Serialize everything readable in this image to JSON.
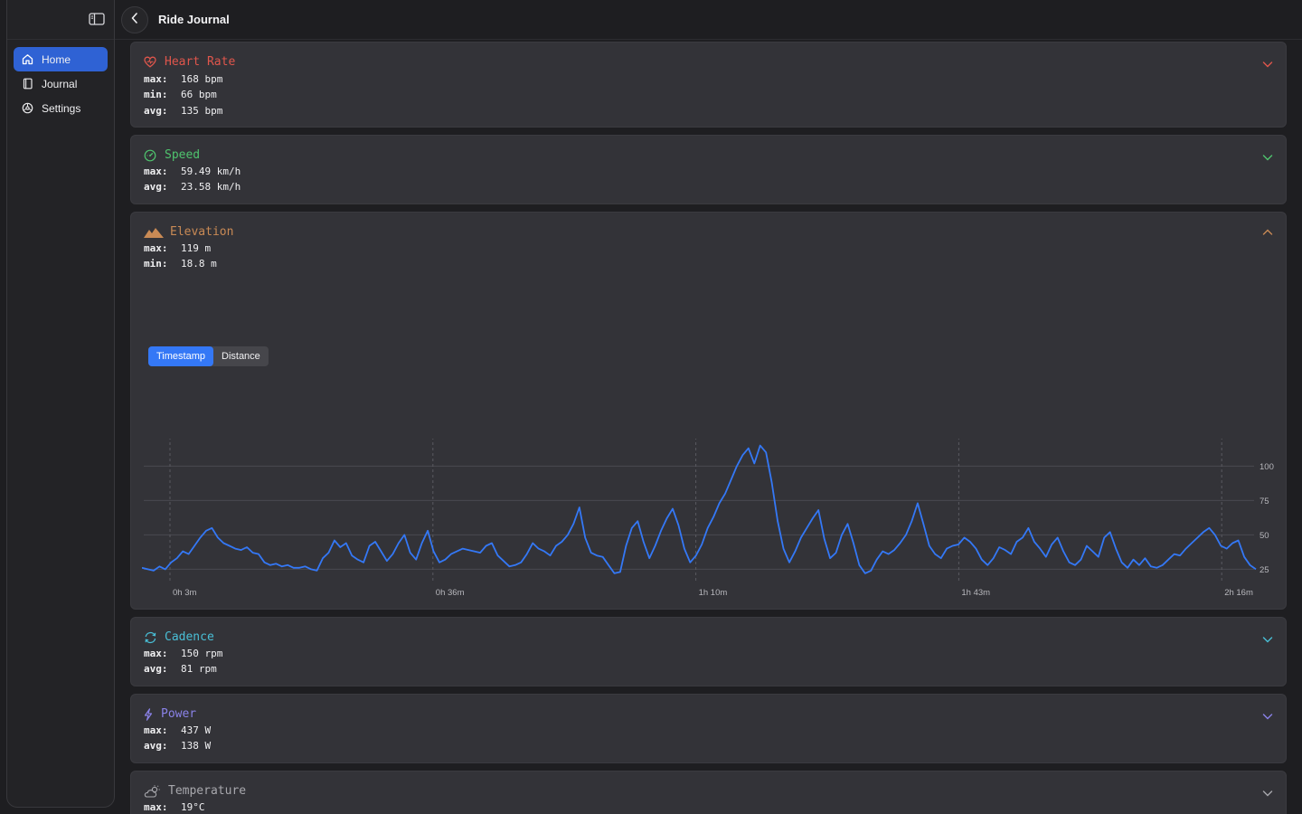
{
  "app": {
    "title": "Ride Journal"
  },
  "sidebar": {
    "items": [
      {
        "label": "Home",
        "icon": "home-icon",
        "active": true
      },
      {
        "label": "Journal",
        "icon": "book-icon",
        "active": false
      },
      {
        "label": "Settings",
        "icon": "gear-icon",
        "active": false
      }
    ]
  },
  "colors": {
    "heart": "#e0564c",
    "speed": "#4fc46e",
    "elevation": "#c98a55",
    "cadence": "#49bfd6",
    "power": "#8a82e8",
    "temperature": "#a8a8ad",
    "accent": "#3478f6"
  },
  "metrics": {
    "heart": {
      "title": "Heart Rate",
      "icon": "heart-icon",
      "rows": [
        {
          "k": "max:",
          "v": "168 bpm"
        },
        {
          "k": "min:",
          "v": "66 bpm"
        },
        {
          "k": "avg:",
          "v": "135 bpm"
        }
      ]
    },
    "speed": {
      "title": "Speed",
      "icon": "speedometer-icon",
      "rows": [
        {
          "k": "max:",
          "v": "59.49 km/h"
        },
        {
          "k": "avg:",
          "v": "23.58 km/h"
        }
      ]
    },
    "elevation": {
      "title": "Elevation",
      "icon": "mountain-icon",
      "rows": [
        {
          "k": "max:",
          "v": "119 m"
        },
        {
          "k": "min:",
          "v": "18.8 m"
        }
      ]
    },
    "cadence": {
      "title": "Cadence",
      "icon": "cycle-arrows-icon",
      "rows": [
        {
          "k": "max:",
          "v": "150 rpm"
        },
        {
          "k": "avg:",
          "v": "81 rpm"
        }
      ]
    },
    "power": {
      "title": "Power",
      "icon": "bolt-icon",
      "rows": [
        {
          "k": "max:",
          "v": "437 W"
        },
        {
          "k": "avg:",
          "v": "138 W"
        }
      ]
    },
    "temperature": {
      "title": "Temperature",
      "icon": "cloud-sun-icon",
      "rows": [
        {
          "k": "max:",
          "v": "19°C"
        }
      ]
    }
  },
  "elevation_toggle": {
    "options": [
      "Timestamp",
      "Distance"
    ],
    "selected": "Timestamp"
  },
  "chart_data": {
    "type": "line",
    "title": "",
    "xlabel": "",
    "ylabel": "",
    "x_tick_labels": [
      "0h 3m",
      "0h 36m",
      "1h 10m",
      "1h 43m",
      "2h 16m"
    ],
    "y_ticks": [
      25,
      50,
      75,
      100
    ],
    "ylim": [
      18,
      120
    ],
    "grid": true,
    "series": [
      {
        "values": [
          26,
          25,
          24,
          27,
          25,
          30,
          33,
          38,
          36,
          42,
          48,
          53,
          55,
          48,
          44,
          42,
          40,
          39,
          41,
          37,
          36,
          30,
          28,
          29,
          27,
          28,
          26,
          26,
          27,
          25,
          24,
          33,
          37,
          46,
          41,
          44,
          35,
          32,
          30,
          42,
          45,
          38,
          31,
          36,
          44,
          50,
          37,
          32,
          44,
          53,
          38,
          30,
          32,
          36,
          38,
          40,
          39,
          38,
          37,
          42,
          44,
          35,
          31,
          27,
          28,
          30,
          36,
          44,
          40,
          38,
          35,
          42,
          45,
          50,
          58,
          70,
          48,
          37,
          35,
          34,
          28,
          22,
          23,
          42,
          55,
          60,
          45,
          33,
          42,
          53,
          62,
          69,
          57,
          40,
          30,
          35,
          43,
          55,
          63,
          73,
          80,
          90,
          100,
          108,
          113,
          102,
          115,
          110,
          88,
          60,
          40,
          30,
          38,
          48,
          55,
          62,
          68,
          47,
          33,
          37,
          50,
          58,
          44,
          28,
          22,
          24,
          32,
          38,
          36,
          39,
          44,
          50,
          60,
          73,
          58,
          42,
          36,
          33,
          40,
          42,
          43,
          48,
          45,
          40,
          32,
          28,
          33,
          41,
          39,
          36,
          45,
          48,
          55,
          45,
          40,
          34,
          43,
          48,
          38,
          30,
          28,
          32,
          42,
          38,
          34,
          48,
          52,
          40,
          30,
          26,
          32,
          28,
          33,
          27,
          26,
          28,
          32,
          36,
          35,
          40,
          44,
          48,
          52,
          55,
          50,
          42,
          40,
          44,
          46,
          34,
          28,
          25
        ]
      }
    ]
  }
}
